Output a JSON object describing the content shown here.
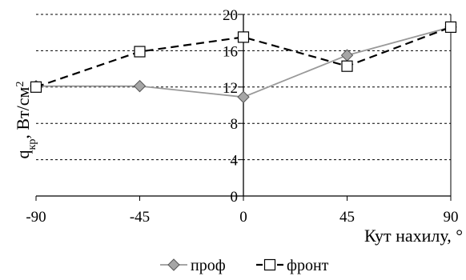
{
  "chart_data": {
    "type": "line",
    "title": "",
    "xlabel": "Кут нахилу, °",
    "ylabel_main": "q",
    "ylabel_sub": "кр",
    "ylabel_rest": ", Вт/см",
    "ylabel_sup": "2",
    "x": [
      -90,
      -45,
      0,
      45,
      90
    ],
    "xlim": [
      -90,
      90
    ],
    "ylim": [
      0,
      20
    ],
    "x_ticks": [
      -90,
      -45,
      0,
      45,
      90
    ],
    "y_ticks": [
      0,
      4,
      8,
      12,
      16,
      20
    ],
    "grid": {
      "horizontal": true,
      "style": "dashed"
    },
    "legend_position": "bottom",
    "series": [
      {
        "name": "проф",
        "values": [
          12.1,
          12.1,
          10.9,
          15.5,
          18.6
        ],
        "color": "#999999",
        "line_style": "solid",
        "marker": "diamond",
        "marker_fill": "#a6a6a6"
      },
      {
        "name": "фронт",
        "values": [
          12.0,
          15.9,
          17.5,
          14.3,
          18.6
        ],
        "color": "#000000",
        "line_style": "dashed",
        "marker": "square",
        "marker_fill": "#ffffff"
      }
    ]
  }
}
